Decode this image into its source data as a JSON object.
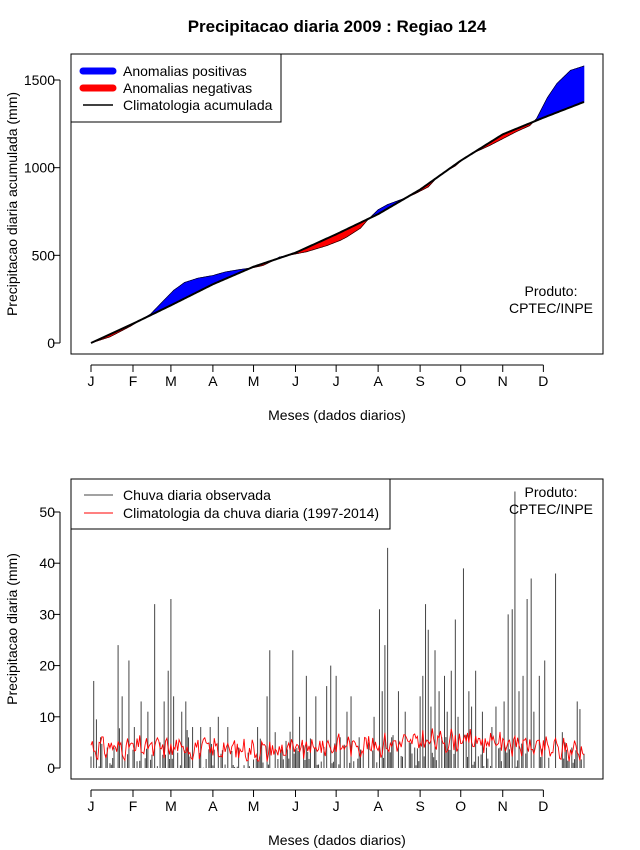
{
  "figure": {
    "title": "Precipitacao diaria 2009 : Regiao 124",
    "credit_line1": "Produto:",
    "credit_line2": "CPTEC/INPE"
  },
  "chart_data": [
    {
      "type": "area",
      "title": "Precipitacao diaria 2009 : Regiao 124",
      "xlabel": "Meses (dados diarios)",
      "ylabel": "Precipitacao diaria acumulada (mm)",
      "x_ticks": [
        "J",
        "F",
        "M",
        "A",
        "M",
        "J",
        "J",
        "A",
        "S",
        "O",
        "N",
        "D"
      ],
      "x_tick_days": [
        1,
        32,
        60,
        91,
        121,
        152,
        182,
        213,
        244,
        274,
        305,
        335
      ],
      "xlim": [
        1,
        365
      ],
      "ylim": [
        0,
        1600
      ],
      "y_ticks": [
        0,
        500,
        1000,
        1500
      ],
      "legend": [
        {
          "label": "Anomalias positivas",
          "color": "#0000ff",
          "kind": "thick"
        },
        {
          "label": "Anomalias negativas",
          "color": "#ff0000",
          "kind": "thick"
        },
        {
          "label": "Climatologia acumulada",
          "color": "#000000",
          "kind": "line"
        }
      ],
      "climatology_cumulative": {
        "days": [
          1,
          32,
          60,
          91,
          121,
          152,
          182,
          213,
          244,
          274,
          305,
          335,
          365
        ],
        "values": [
          0,
          110,
          215,
          335,
          435,
          515,
          620,
          735,
          875,
          1040,
          1190,
          1285,
          1375
        ]
      },
      "observed_cumulative": {
        "days": [
          1,
          15,
          30,
          45,
          55,
          62,
          70,
          80,
          91,
          100,
          110,
          121,
          128,
          135,
          140,
          150,
          160,
          175,
          185,
          190,
          200,
          205,
          213,
          220,
          230,
          240,
          250,
          256,
          262,
          270,
          276,
          285,
          295,
          305,
          315,
          325,
          330,
          338,
          345,
          355,
          365
        ],
        "values": [
          0,
          35,
          95,
          165,
          245,
          300,
          345,
          370,
          385,
          405,
          418,
          430,
          442,
          468,
          490,
          505,
          520,
          555,
          585,
          605,
          655,
          700,
          760,
          790,
          818,
          850,
          890,
          940,
          975,
          1010,
          1050,
          1090,
          1125,
          1165,
          1205,
          1240,
          1280,
          1400,
          1480,
          1555,
          1580
        ]
      }
    },
    {
      "type": "line",
      "xlabel": "Meses (dados diarios)",
      "ylabel": "Precipitacao diaria (mm)",
      "x_ticks": [
        "J",
        "F",
        "M",
        "A",
        "M",
        "J",
        "J",
        "A",
        "S",
        "O",
        "N",
        "D"
      ],
      "x_tick_days": [
        1,
        32,
        60,
        91,
        121,
        152,
        182,
        213,
        244,
        274,
        305,
        335
      ],
      "xlim": [
        1,
        365
      ],
      "ylim": [
        0,
        55
      ],
      "y_ticks": [
        0,
        10,
        20,
        30,
        40,
        50
      ],
      "legend": [
        {
          "label": "Chuva diaria observada",
          "color": "#444444"
        },
        {
          "label": "Climatologia da chuva diaria (1997-2014)",
          "color": "#ff0000"
        }
      ],
      "observed_peaks": {
        "days": [
          3,
          5,
          8,
          13,
          18,
          21,
          24,
          29,
          33,
          38,
          43,
          48,
          52,
          55,
          58,
          60,
          62,
          65,
          68,
          71,
          76,
          82,
          89,
          95,
          102,
          110,
          117,
          124,
          127,
          131,
          133,
          137,
          141,
          150,
          155,
          160,
          167,
          175,
          178,
          182,
          185,
          190,
          193,
          199,
          202,
          206,
          210,
          214,
          216,
          218,
          220,
          223,
          228,
          233,
          236,
          240,
          244,
          246,
          248,
          250,
          252,
          255,
          258,
          260,
          262,
          264,
          267,
          270,
          272,
          276,
          280,
          282,
          285,
          290,
          293,
          297,
          300,
          303,
          306,
          309,
          312,
          314,
          317,
          320,
          323,
          326,
          328,
          332,
          336,
          339,
          344,
          349,
          351,
          356,
          360,
          362
        ],
        "values": [
          17,
          9.5,
          6,
          4,
          4,
          24,
          14,
          21,
          8,
          13,
          11,
          32,
          5,
          13,
          19,
          33,
          14,
          3,
          11,
          13,
          8,
          8,
          8,
          10,
          8,
          4,
          3,
          8,
          5,
          14,
          23,
          7,
          3,
          23,
          10,
          18,
          14,
          16,
          20,
          18,
          6,
          11,
          14,
          6,
          3,
          5,
          10,
          31,
          15,
          24,
          43,
          6,
          15,
          11,
          5,
          4,
          14,
          18,
          32,
          27,
          12,
          23,
          15,
          6,
          18,
          11,
          19,
          29,
          10,
          39,
          15,
          12,
          19,
          11,
          4,
          8,
          12,
          4,
          13,
          30,
          31,
          54,
          15,
          18,
          33,
          37,
          11,
          18,
          21,
          2,
          38,
          7,
          5,
          4,
          13,
          11.5
        ]
      },
      "climatology_daily_mean": {
        "days": [
          1,
          32,
          60,
          91,
          121,
          152,
          182,
          213,
          244,
          274,
          305,
          335,
          365
        ],
        "values": [
          4,
          4,
          4,
          3.8,
          3.5,
          3.5,
          4.5,
          4.5,
          5.2,
          5.5,
          5.0,
          3.8,
          3.5
        ]
      }
    }
  ]
}
